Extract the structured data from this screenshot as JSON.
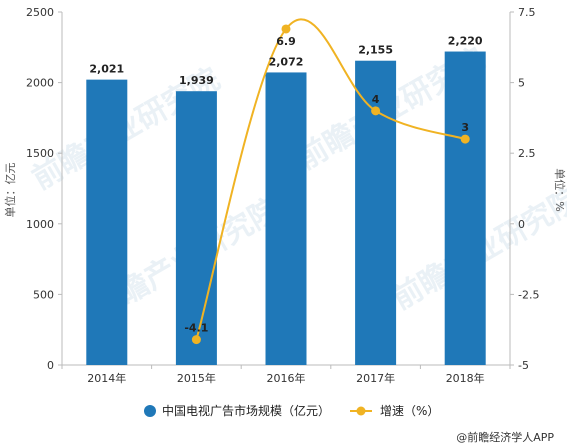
{
  "chart_data": {
    "type": "bar",
    "categories": [
      "2014年",
      "2015年",
      "2016年",
      "2017年",
      "2018年"
    ],
    "series": [
      {
        "name": "中国电视广告市场规模（亿元）",
        "type": "bar",
        "axis": "left",
        "values": [
          2021,
          1939,
          2072,
          2155,
          2220
        ],
        "labels": [
          "2,021",
          "1,939",
          "2,072",
          "2,155",
          "2,220"
        ]
      },
      {
        "name": "增速（%）",
        "type": "line",
        "axis": "right",
        "values": [
          null,
          -4.1,
          6.9,
          4,
          3
        ],
        "labels": [
          "",
          "-4.1",
          "6.9",
          "4",
          "3"
        ]
      }
    ],
    "ylabel": "单位：亿元",
    "y2label": "单位：%",
    "ylim": [
      0,
      2500
    ],
    "y2lim": [
      -5,
      7.5
    ],
    "yticks": [
      "0",
      "500",
      "1000",
      "1500",
      "2000",
      "2500"
    ],
    "y2ticks": [
      "-5",
      "-2.5",
      "0",
      "2.5",
      "5",
      "7.5"
    ],
    "legend_position": "bottom",
    "grid": false
  },
  "colors": {
    "bar": "#1f78b8",
    "line": "#f0b323",
    "axis": "#bbbbbb"
  },
  "watermark": "前瞻产业研究院",
  "source": "@前瞻经济学人APP"
}
